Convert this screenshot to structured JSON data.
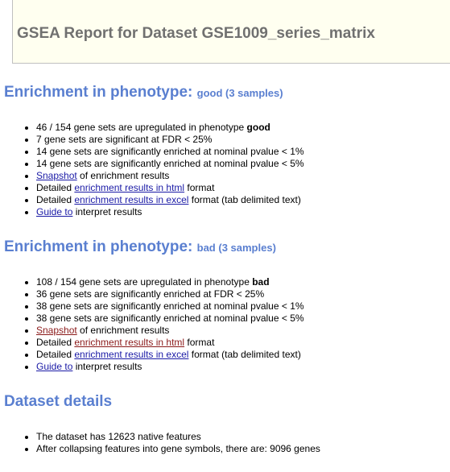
{
  "header": {
    "title": "GSEA Report for Dataset GSE1009_series_matrix"
  },
  "sections": [
    {
      "title": "Enrichment in phenotype:",
      "subtitle": "good (3 samples)",
      "items": [
        {
          "pre": "46 / 154 gene sets are upregulated in phenotype ",
          "bold": "good",
          "link": "",
          "post": ""
        },
        {
          "pre": "7 gene sets are significant at FDR < 25%",
          "bold": "",
          "link": "",
          "post": ""
        },
        {
          "pre": "14 gene sets are significantly enriched at nominal pvalue < 1%",
          "bold": "",
          "link": "",
          "post": ""
        },
        {
          "pre": "14 gene sets are significantly enriched at nominal pvalue < 5%",
          "bold": "",
          "link": "",
          "post": ""
        },
        {
          "pre": "",
          "bold": "",
          "link": "Snapshot",
          "post": " of enrichment results"
        },
        {
          "pre": "Detailed ",
          "bold": "",
          "link": "enrichment results in html",
          "post": " format"
        },
        {
          "pre": "Detailed ",
          "bold": "",
          "link": "enrichment results in excel",
          "post": " format (tab delimited text)"
        },
        {
          "pre": "",
          "bold": "",
          "link": "Guide to",
          "post": " interpret results"
        }
      ]
    },
    {
      "title": "Enrichment in phenotype:",
      "subtitle": "bad (3 samples)",
      "items": [
        {
          "pre": "108 / 154 gene sets are upregulated in phenotype ",
          "bold": "bad",
          "link": "",
          "post": ""
        },
        {
          "pre": "36 gene sets are significantly enriched at FDR < 25%",
          "bold": "",
          "link": "",
          "post": ""
        },
        {
          "pre": "38 gene sets are significantly enriched at nominal pvalue < 1%",
          "bold": "",
          "link": "",
          "post": ""
        },
        {
          "pre": "38 gene sets are significantly enriched at nominal pvalue < 5%",
          "bold": "",
          "link": "",
          "post": ""
        },
        {
          "pre": "",
          "bold": "",
          "link": "Snapshot",
          "post": " of enrichment results"
        },
        {
          "pre": "Detailed ",
          "bold": "",
          "link": "enrichment results in html",
          "post": " format"
        },
        {
          "pre": "Detailed ",
          "bold": "",
          "link": "enrichment results in excel",
          "post": " format (tab delimited text)"
        },
        {
          "pre": "",
          "bold": "",
          "link": "Guide to",
          "post": " interpret results"
        }
      ]
    },
    {
      "title": "Dataset details",
      "items": [
        {
          "pre": "The dataset has 12623 native features",
          "bold": "",
          "link": "",
          "post": ""
        },
        {
          "pre": "After collapsing features into gene symbols, there are: 9096 genes",
          "bold": "",
          "link": "",
          "post": ""
        }
      ]
    }
  ],
  "colors": {
    "heading": "#5a7fd0",
    "header_text": "#707070",
    "header_bg": "#fffff0",
    "link": "#1a1aa6",
    "visited_link": "#8b1a1a"
  }
}
